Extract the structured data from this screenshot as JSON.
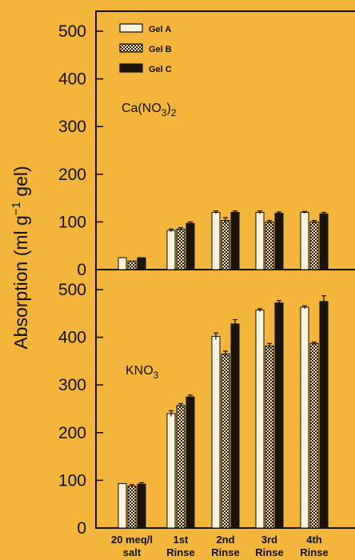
{
  "chart_data": {
    "type": "bar",
    "ylabel": "Absorption (ml g⁻¹ gel)",
    "categories": [
      {
        "line1": "20 meq/l",
        "line2": "salt"
      },
      {
        "line1": "1st",
        "line2": "Rinse"
      },
      {
        "line1": "2nd",
        "line2": "Rinse"
      },
      {
        "line1": "3rd",
        "line2": "Rinse"
      },
      {
        "line1": "4th",
        "line2": "Rinse"
      }
    ],
    "legend": [
      {
        "name": "Gel A",
        "fill": "white"
      },
      {
        "name": "Gel B",
        "fill": "checker"
      },
      {
        "name": "Gel C",
        "fill": "dark"
      }
    ],
    "panels": [
      {
        "label": {
          "base": "Ca(NO",
          "sub1": "3",
          "close": ")",
          "sub2": "2"
        },
        "ylim": [
          0,
          500
        ],
        "yticks": [
          "0",
          "100",
          "200",
          "300",
          "400",
          "500"
        ],
        "series": [
          {
            "name": "Gel A",
            "values": [
              25,
              82,
              120,
              120,
              120
            ],
            "errors": [
              0,
              3,
              3,
              3,
              2
            ]
          },
          {
            "name": "Gel B",
            "values": [
              18,
              85,
              103,
              100,
              100
            ],
            "errors": [
              0,
              3,
              6,
              3,
              3
            ]
          },
          {
            "name": "Gel C",
            "values": [
              25,
              97,
              120,
              118,
              117
            ],
            "errors": [
              0,
              3,
              3,
              3,
              3
            ]
          }
        ]
      },
      {
        "label": {
          "base": "KNO",
          "sub1": "3"
        },
        "ylim": [
          0,
          500
        ],
        "yticks": [
          "0",
          "100",
          "200",
          "300",
          "400",
          "500"
        ],
        "series": [
          {
            "name": "Gel A",
            "values": [
              93,
              240,
              402,
              457,
              463
            ],
            "errors": [
              0,
              6,
              7,
              3,
              3
            ]
          },
          {
            "name": "Gel B",
            "values": [
              88,
              257,
              365,
              382,
              387
            ],
            "errors": [
              3,
              4,
              6,
              5,
              3
            ]
          },
          {
            "name": "Gel C",
            "values": [
              92,
              275,
              428,
              472,
              475
            ],
            "errors": [
              3,
              4,
              9,
              5,
              12
            ]
          }
        ]
      }
    ]
  }
}
